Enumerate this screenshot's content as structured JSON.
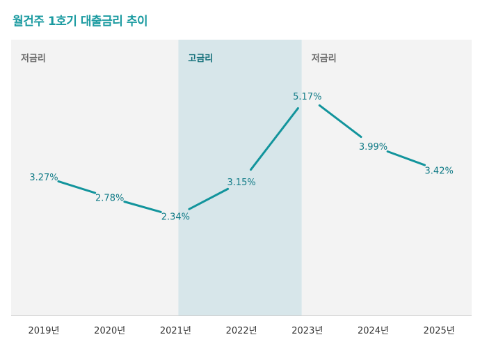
{
  "title": "월건주 1호기 대출금리 추이",
  "chart_data": {
    "type": "line",
    "title": "월건주 1호기 대출금리 추이",
    "categories": [
      "2019년",
      "2020년",
      "2021년",
      "2022년",
      "2023년",
      "2024년",
      "2025년"
    ],
    "values": [
      3.27,
      2.78,
      2.34,
      3.15,
      5.17,
      3.99,
      3.42
    ],
    "value_labels": [
      "3.27%",
      "2.78%",
      "2.34%",
      "3.15%",
      "5.17%",
      "3.99%",
      "3.42%"
    ],
    "unit": "%",
    "ylim": [
      0,
      6.5
    ],
    "periods": [
      {
        "label": "저금리",
        "from": "2019년",
        "to": "2021년",
        "kind": "low"
      },
      {
        "label": "고금리",
        "from": "2021년",
        "to": "2023년",
        "kind": "high"
      },
      {
        "label": "저금리",
        "from": "2023년",
        "to": "2025년",
        "kind": "low"
      }
    ],
    "colors": {
      "line": "#12949c",
      "low_band": "#f3f3f3",
      "high_band": "#d7e6ea",
      "axis": "#cccccc"
    }
  }
}
